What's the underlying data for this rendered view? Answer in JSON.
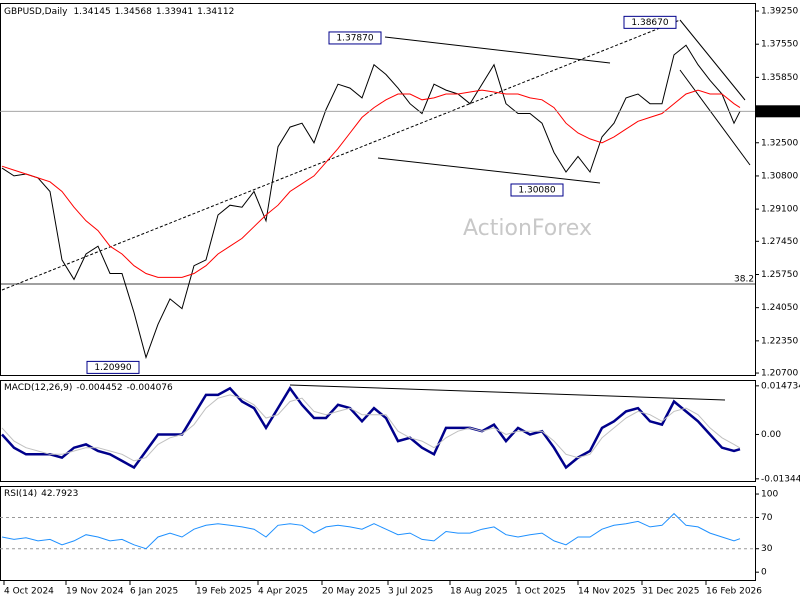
{
  "watermark": "ActionForex",
  "chart_data": [
    {
      "type": "line",
      "title": "GBPUSD,Daily",
      "open": 1.34145,
      "high": 1.34568,
      "low": 1.33941,
      "x": [
        0,
        6,
        12,
        18,
        24,
        30,
        36,
        42,
        48,
        54,
        60,
        66,
        72,
        78,
        84,
        90,
        96,
        102,
        108,
        114,
        120,
        126,
        132,
        138,
        144,
        150,
        156,
        162,
        168,
        174,
        180,
        186,
        192,
        198,
        204,
        210,
        216,
        222,
        228,
        234,
        240,
        246,
        252,
        258,
        264,
        270,
        276,
        282,
        288,
        294,
        300,
        306,
        312,
        318,
        324,
        330,
        336,
        342,
        348,
        354,
        360,
        366,
        369
      ],
      "xlim": [
        -1,
        376.5
      ],
      "xticks": [
        {
          "value": 1,
          "label": "4 Oct 2024"
        },
        {
          "value": 32,
          "label": "19 Nov 2024"
        },
        {
          "value": 64,
          "label": "6 Jan 2025"
        },
        {
          "value": 97,
          "label": "19 Feb 2025"
        },
        {
          "value": 128,
          "label": "4 Apr 2025"
        },
        {
          "value": 160,
          "label": "20 May 2025"
        },
        {
          "value": 193,
          "label": "3 Jul 2025"
        },
        {
          "value": 224,
          "label": "18 Aug 2025"
        },
        {
          "value": 257,
          "label": "1 Oct 2025"
        },
        {
          "value": 288,
          "label": "14 Nov 2025"
        },
        {
          "value": 320,
          "label": "31 Dec 2025"
        },
        {
          "value": 352,
          "label": "16 Feb 2026"
        }
      ],
      "ylim": [
        1.206,
        1.3961
      ],
      "yticks": [
        {
          "value": 1.3925,
          "label": "1.39250"
        },
        {
          "value": 1.3755,
          "label": "1.37550"
        },
        {
          "value": 1.3585,
          "label": "1.35850"
        },
        {
          "value": 1.325,
          "label": "1.32500"
        },
        {
          "value": 1.308,
          "label": "1.30800"
        },
        {
          "value": 1.291,
          "label": "1.29100"
        },
        {
          "value": 1.2745,
          "label": "1.27450"
        },
        {
          "value": 1.2575,
          "label": "1.25750"
        },
        {
          "value": 1.2405,
          "label": "1.24050"
        },
        {
          "value": 1.2235,
          "label": "1.22350"
        },
        {
          "value": 1.207,
          "label": "1.20700"
        }
      ],
      "series": [
        {
          "color": "#000000",
          "line_width": 1,
          "values": [
            1.312,
            1.308,
            1.309,
            1.307,
            1.3,
            1.265,
            1.255,
            1.268,
            1.272,
            1.258,
            1.258,
            1.238,
            1.215,
            1.232,
            1.245,
            1.24,
            1.262,
            1.265,
            1.288,
            1.293,
            1.292,
            1.3,
            1.285,
            1.323,
            1.333,
            1.335,
            1.325,
            1.342,
            1.355,
            1.353,
            1.348,
            1.365,
            1.36,
            1.353,
            1.345,
            1.34,
            1.355,
            1.352,
            1.35,
            1.345,
            1.355,
            1.365,
            1.345,
            1.34,
            1.34,
            1.335,
            1.32,
            1.31,
            1.318,
            1.31,
            1.328,
            1.335,
            1.348,
            1.35,
            1.345,
            1.345,
            1.37,
            1.375,
            1.365,
            1.357,
            1.35,
            1.335,
            1.34112
          ]
        },
        {
          "color": "#ff0000",
          "line_width": 1,
          "values": [
            1.313,
            1.311,
            1.309,
            1.307,
            1.305,
            1.3,
            1.292,
            1.285,
            1.28,
            1.272,
            1.268,
            1.262,
            1.258,
            1.256,
            1.256,
            1.256,
            1.258,
            1.262,
            1.268,
            1.272,
            1.276,
            1.282,
            1.288,
            1.293,
            1.3,
            1.304,
            1.308,
            1.315,
            1.322,
            1.33,
            1.338,
            1.343,
            1.347,
            1.35,
            1.35,
            1.347,
            1.348,
            1.35,
            1.35,
            1.351,
            1.352,
            1.351,
            1.35,
            1.35,
            1.348,
            1.347,
            1.343,
            1.335,
            1.33,
            1.327,
            1.325,
            1.328,
            1.332,
            1.336,
            1.338,
            1.34,
            1.345,
            1.35,
            1.352,
            1.35,
            1.35,
            1.345,
            1.343
          ]
        }
      ],
      "annotations": [
        {
          "value": 1.3787,
          "label": "1.37870"
        },
        {
          "value": 1.3867,
          "label": "1.38670"
        },
        {
          "value": 1.3008,
          "label": "1.30080"
        },
        {
          "value": 1.2099,
          "label": "1.20990"
        }
      ],
      "fib_label": "38.2"
    },
    {
      "type": "line",
      "title": "MACD(12,26,9)",
      "ylim": [
        -0.0141,
        0.0162
      ],
      "yticks": [
        0.014734,
        {
          "value": 0,
          "label": "0.00"
        },
        -0.013442
      ],
      "series": [
        {
          "color": "#00008b",
          "line_width": 2.5,
          "values": [
            0.0,
            -0.004,
            -0.006,
            -0.006,
            -0.006,
            -0.007,
            -0.004,
            -0.003,
            -0.005,
            -0.006,
            -0.008,
            -0.01,
            -0.005,
            0.0,
            0.0,
            0.0,
            0.006,
            0.012,
            0.012,
            0.014,
            0.01,
            0.008,
            0.002,
            0.008,
            0.014,
            0.009,
            0.005,
            0.005,
            0.009,
            0.008,
            0.004,
            0.008,
            0.005,
            -0.002,
            -0.001,
            -0.004,
            -0.006,
            0.002,
            0.002,
            0.002,
            0.001,
            0.003,
            -0.002,
            0.002,
            0.0,
            0.001,
            -0.004,
            -0.01,
            -0.007,
            -0.005,
            0.002,
            0.004,
            0.007,
            0.008,
            0.004,
            0.003,
            0.01,
            0.007,
            0.004,
            0.0,
            -0.004,
            -0.005,
            -0.004452
          ]
        },
        {
          "color": "#c0c0c0",
          "line_width": 1,
          "values": [
            0.002,
            -0.002,
            -0.004,
            -0.005,
            -0.006,
            -0.006,
            -0.005,
            -0.004,
            -0.004,
            -0.005,
            -0.006,
            -0.008,
            -0.007,
            -0.003,
            -0.001,
            0.0,
            0.003,
            0.008,
            0.011,
            0.012,
            0.011,
            0.009,
            0.005,
            0.006,
            0.01,
            0.011,
            0.007,
            0.006,
            0.007,
            0.008,
            0.006,
            0.006,
            0.006,
            0.001,
            -0.001,
            -0.002,
            -0.004,
            -0.001,
            0.001,
            0.002,
            0.001,
            0.002,
            0.0,
            0.001,
            0.001,
            0.001,
            -0.002,
            -0.006,
            -0.007,
            -0.006,
            -0.001,
            0.002,
            0.005,
            0.007,
            0.006,
            0.004,
            0.007,
            0.008,
            0.006,
            0.002,
            -0.001,
            -0.003,
            -0.004076
          ]
        }
      ]
    },
    {
      "type": "line",
      "title": "RSI(14)",
      "ylim": [
        -10,
        109
      ],
      "yticks": [
        100,
        70,
        30,
        0
      ],
      "levels": [
        70,
        30
      ],
      "series": [
        {
          "color": "#1e90ff",
          "line_width": 1,
          "values": [
            45,
            42,
            44,
            40,
            42,
            35,
            40,
            48,
            45,
            40,
            42,
            35,
            30,
            45,
            50,
            45,
            55,
            60,
            62,
            60,
            58,
            55,
            45,
            60,
            62,
            60,
            50,
            58,
            60,
            58,
            55,
            62,
            55,
            48,
            50,
            42,
            40,
            52,
            50,
            50,
            55,
            58,
            48,
            45,
            48,
            50,
            40,
            35,
            45,
            45,
            55,
            60,
            62,
            65,
            58,
            60,
            75,
            60,
            58,
            50,
            45,
            40,
            42.7923
          ]
        }
      ]
    }
  ]
}
